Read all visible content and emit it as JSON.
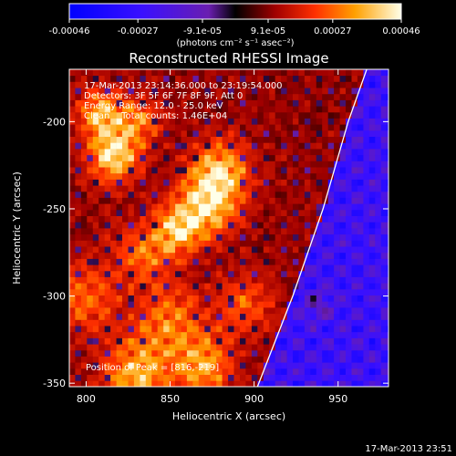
{
  "chart_data": {
    "type": "heatmap",
    "title": "Reconstructed RHESSI Image",
    "xlabel": "Heliocentric X (arcsec)",
    "ylabel": "Heliocentric Y (arcsec)",
    "xlim": [
      790,
      980
    ],
    "ylim": [
      -352,
      -170
    ],
    "x_ticks": [
      800,
      850,
      900,
      950
    ],
    "y_ticks": [
      -200,
      -250,
      -300,
      -350
    ],
    "colorbar": {
      "min": -0.00046,
      "max": 0.00046,
      "tick_values": [
        -0.00046,
        -0.00027,
        -9.1e-05,
        9.1e-05,
        0.00027,
        0.00046
      ],
      "tick_labels": [
        "-0.00046",
        "-0.00027",
        "-9.1e-05",
        "9.1e-05",
        "0.00027",
        "0.00046"
      ],
      "unit_label": "(photons cm⁻² s⁻¹ asec⁻²)"
    },
    "annotations": [
      "17-Mar-2013 23:14:36.000 to 23:19:54.000",
      "Detectors: 3F 5F 6F 7F 8F 9F, Att 0",
      "Energy Range: 12.0 - 25.0 keV",
      "Clean    Total counts: 1.46E+04"
    ],
    "peak_label": "Position of Peak = [816,-219]",
    "peak": [
      816,
      -219
    ],
    "limb": [
      [
        902,
        -352
      ],
      [
        923,
        -300
      ],
      [
        941,
        -250
      ],
      [
        956,
        -200
      ],
      [
        967,
        -170
      ]
    ],
    "hotspots": [
      {
        "x": 816,
        "y": -219,
        "amp": 1.0,
        "s": 10
      },
      {
        "x": 808,
        "y": -195,
        "amp": 0.75,
        "s": 9
      },
      {
        "x": 830,
        "y": -200,
        "amp": 0.55,
        "s": 10
      },
      {
        "x": 880,
        "y": -228,
        "amp": 0.8,
        "s": 12
      },
      {
        "x": 872,
        "y": -248,
        "amp": 0.85,
        "s": 12
      },
      {
        "x": 855,
        "y": -262,
        "amp": 0.75,
        "s": 10
      },
      {
        "x": 835,
        "y": -276,
        "amp": 0.5,
        "s": 12
      },
      {
        "x": 800,
        "y": -300,
        "amp": 0.5,
        "s": 14
      },
      {
        "x": 850,
        "y": -315,
        "amp": 0.55,
        "s": 14
      },
      {
        "x": 830,
        "y": -345,
        "amp": 0.75,
        "s": 14
      },
      {
        "x": 870,
        "y": -340,
        "amp": 0.7,
        "s": 12
      },
      {
        "x": 895,
        "y": -305,
        "amp": 0.45,
        "s": 12
      },
      {
        "x": 938,
        "y": -305,
        "amp": 0.3,
        "s": 6
      }
    ]
  },
  "footer": {
    "timestamp": "17-Mar-2013 23:51"
  }
}
